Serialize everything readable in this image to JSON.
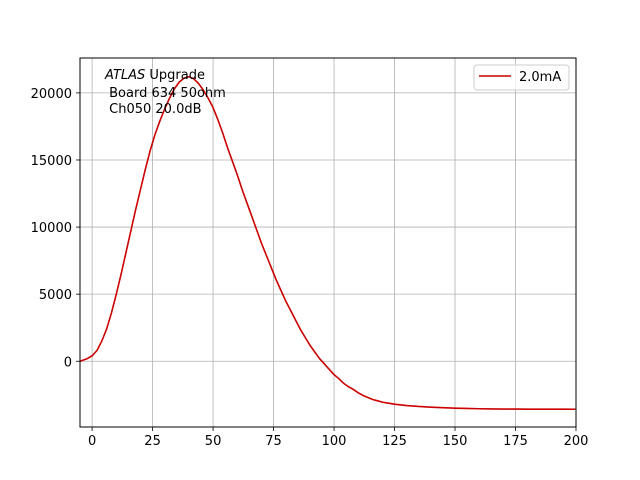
{
  "chart_data": {
    "type": "line",
    "title": "",
    "xlabel": "",
    "ylabel": "",
    "xlim": [
      -5,
      200
    ],
    "ylim": [
      -4900,
      22600
    ],
    "x_ticks": [
      0,
      25,
      50,
      75,
      100,
      125,
      150,
      175,
      200
    ],
    "y_ticks": [
      0,
      5000,
      10000,
      15000,
      20000
    ],
    "grid": true,
    "legend_position": "top-right",
    "annotation": {
      "prefix": "ATLAS",
      "suffix": " Upgrade",
      "line2": " Board 634 50ohm",
      "line3": " Ch050 20.0dB"
    },
    "series": [
      {
        "name": "2.0mA",
        "color": "#cc0000",
        "x": [
          -5,
          -2,
          0,
          2,
          4,
          6,
          8,
          10,
          12,
          14,
          16,
          18,
          20,
          22,
          24,
          26,
          28,
          30,
          32,
          34,
          36,
          38,
          40,
          42,
          44,
          46,
          48,
          50,
          52,
          54,
          56,
          58,
          60,
          62,
          64,
          66,
          68,
          70,
          72,
          74,
          76,
          78,
          80,
          82,
          84,
          86,
          88,
          90,
          92,
          94,
          96,
          98,
          100,
          102,
          104,
          106,
          108,
          110,
          112,
          114,
          116,
          118,
          120,
          125,
          130,
          135,
          140,
          145,
          150,
          155,
          160,
          165,
          170,
          175,
          180,
          185,
          190,
          195,
          200
        ],
        "y": [
          0,
          200,
          400,
          800,
          1500,
          2400,
          3600,
          5000,
          6500,
          8100,
          9700,
          11300,
          12800,
          14300,
          15700,
          16900,
          17900,
          18800,
          19600,
          20300,
          20800,
          21100,
          21200,
          21050,
          20700,
          20200,
          19600,
          18900,
          18000,
          17000,
          15900,
          14900,
          13900,
          12800,
          11800,
          10800,
          9800,
          8800,
          7900,
          7000,
          6100,
          5300,
          4500,
          3800,
          3100,
          2400,
          1800,
          1200,
          700,
          200,
          -200,
          -600,
          -1000,
          -1300,
          -1650,
          -1900,
          -2100,
          -2350,
          -2550,
          -2700,
          -2850,
          -2950,
          -3050,
          -3200,
          -3300,
          -3370,
          -3420,
          -3460,
          -3500,
          -3520,
          -3540,
          -3555,
          -3560,
          -3565,
          -3570,
          -3572,
          -3575,
          -3576,
          -3577
        ]
      }
    ]
  }
}
